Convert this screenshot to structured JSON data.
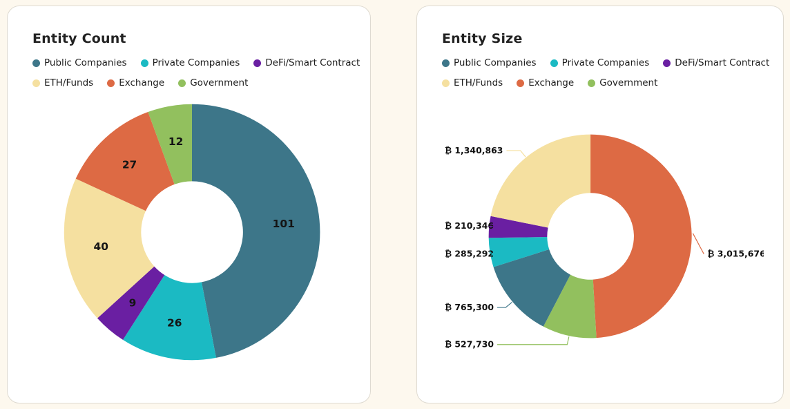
{
  "page": {
    "background": "#FDF8EE"
  },
  "legend": {
    "items": [
      {
        "label": "Public Companies",
        "color": "#3D7689"
      },
      {
        "label": "Private Companies",
        "color": "#1BBAC3"
      },
      {
        "label": "DeFi/Smart Contract",
        "color": "#6A1FA2"
      },
      {
        "label": "ETH/Funds",
        "color": "#F5E0A0"
      },
      {
        "label": "Exchange",
        "color": "#DD6A44"
      },
      {
        "label": "Government",
        "color": "#92C05E"
      }
    ]
  },
  "chart_data": [
    {
      "type": "pie",
      "title": "Entity Count",
      "donut": true,
      "legend_position": "top",
      "direction": "clockwise",
      "start_angle_deg": 0,
      "label_style": "inside",
      "slices": [
        {
          "label": "Public Companies",
          "value": 101,
          "color": "#3D7689"
        },
        {
          "label": "Private Companies",
          "value": 26,
          "color": "#1BBAC3"
        },
        {
          "label": "DeFi/Smart Contract",
          "value": 9,
          "color": "#6A1FA2"
        },
        {
          "label": "ETH/Funds",
          "value": 40,
          "color": "#F5E0A0"
        },
        {
          "label": "Exchange",
          "value": 27,
          "color": "#DD6A44"
        },
        {
          "label": "Government",
          "value": 12,
          "color": "#92C05E"
        }
      ]
    },
    {
      "type": "pie",
      "title": "Entity Size",
      "donut": true,
      "legend_position": "top",
      "direction": "clockwise",
      "start_angle_deg": 0,
      "label_style": "outside",
      "unit": "₿",
      "slices": [
        {
          "label": "Exchange",
          "value": 3015676,
          "display": "₿ 3,015,676",
          "color": "#DD6A44"
        },
        {
          "label": "Government",
          "value": 527730,
          "display": "₿ 527,730",
          "color": "#92C05E"
        },
        {
          "label": "Public Companies",
          "value": 765300,
          "display": "₿ 765,300",
          "color": "#3D7689"
        },
        {
          "label": "Private Companies",
          "value": 285292,
          "display": "₿ 285,292",
          "color": "#1BBAC3"
        },
        {
          "label": "DeFi/Smart Contract",
          "value": 210346,
          "display": "₿ 210,346",
          "color": "#6A1FA2"
        },
        {
          "label": "ETH/Funds",
          "value": 1340863,
          "display": "₿ 1,340,863",
          "color": "#F5E0A0"
        }
      ]
    }
  ]
}
